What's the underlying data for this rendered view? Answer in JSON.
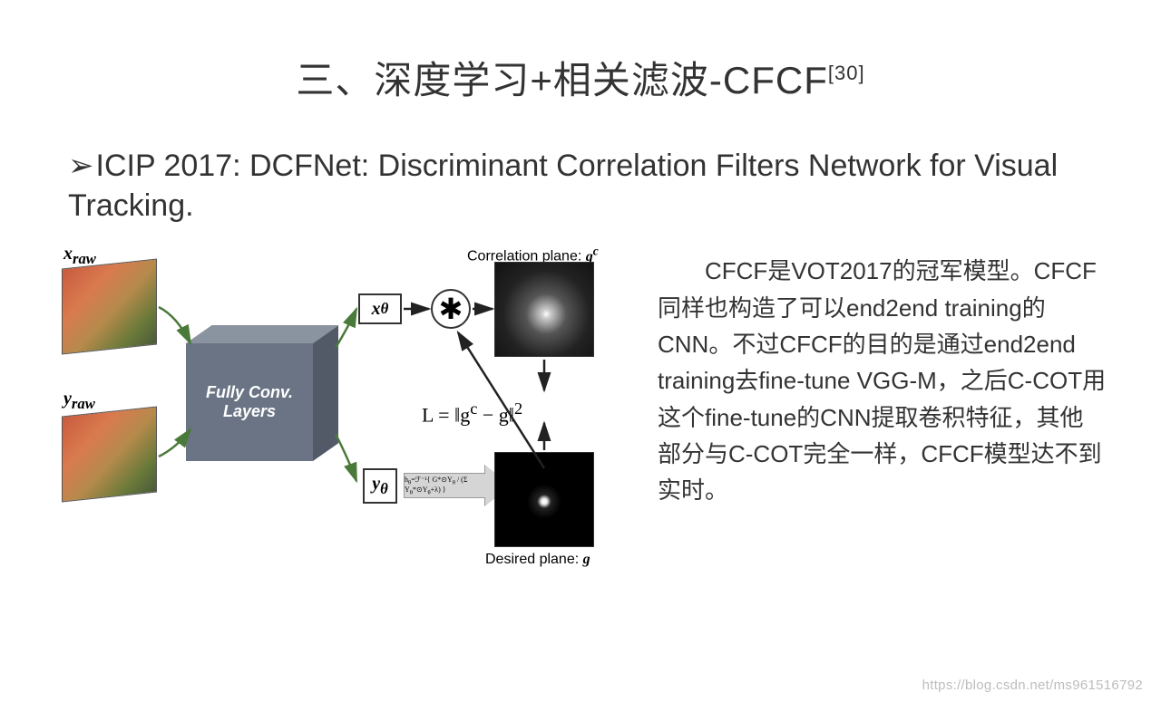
{
  "title": {
    "prefix": "三、深度学习+相关滤波-CFCF",
    "citation": "[30]"
  },
  "bullet": {
    "arrow_char": "➢",
    "text": "ICIP 2017: DCFNet: Discriminant Correlation Filters Network for Visual Tracking."
  },
  "diagram": {
    "x_raw_label": "x",
    "x_raw_sub": "raw",
    "y_raw_label": "y",
    "y_raw_sub": "raw",
    "cube_label": "Fully Conv. Layers",
    "x_theta": "x",
    "x_theta_sub": "θ",
    "y_theta": "y",
    "y_theta_sub": "θ",
    "h_theta": "h",
    "h_theta_sub": "θ",
    "conv_symbol": "✱",
    "corr_plane_label_prefix": "Correlation plane: ",
    "corr_plane_sym": "g",
    "corr_plane_sup": "c",
    "desired_plane_label_prefix": "Desired plane: ",
    "desired_plane_sym": "g",
    "loss_html": "L = ‖g<sup>c</sup> − g‖<sup>2</sup>",
    "filter_formula": "h<sub>θ</sub>=ℱ⁻¹{ G*⊙Y<sub>θ</sub> / (Σ Y<sub>θ</sub>*⊙Y<sub>θ</sub>+λ) }",
    "thumb_colors": {
      "track": "#c95b3f",
      "grass": "#6a7a3a"
    },
    "arrow_color_green": "#4a7a3a",
    "arrow_color_black": "#222222",
    "cube_colors": {
      "front": "#6a7484",
      "top": "#8a93a0",
      "side": "#525a68"
    }
  },
  "description": "CFCF是VOT2017的冠军模型。CFCF同样也构造了可以end2end training的CNN。不过CFCF的目的是通过end2end training去fine-tune VGG-M，之后C-COT用这个fine-tune的CNN提取卷积特征，其他部分与C-COT完全一样，CFCF模型达不到实时。",
  "watermark": "https://blog.csdn.net/ms961516792"
}
